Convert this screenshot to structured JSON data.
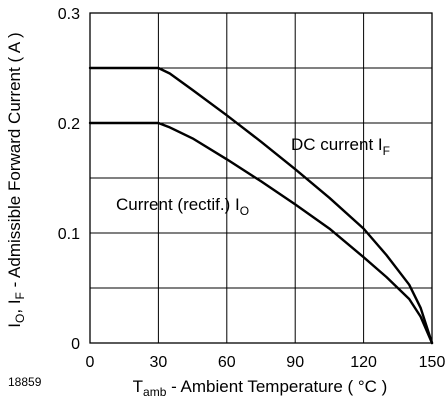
{
  "chart_data": {
    "type": "line",
    "figure_number": "18859",
    "xlabel": {
      "main": "T",
      "sub": "amb",
      "rest": " - Ambient Temperature ( °C )"
    },
    "ylabel": {
      "p1": "I",
      "s1": "O",
      "p2": ", I",
      "s2": "F",
      "p3": " - Admissible Forward Current ( A )"
    },
    "xlim": [
      0,
      150
    ],
    "ylim": [
      0,
      0.3
    ],
    "x_ticks": [
      0,
      30,
      60,
      90,
      120,
      150
    ],
    "x_tick_labels": [
      "0",
      "30",
      "60",
      "90",
      "120",
      "150"
    ],
    "y_ticks": [
      0,
      0.1,
      0.2,
      0.3
    ],
    "y_tick_labels": [
      "0",
      "0.1",
      "0.2",
      "0.3"
    ],
    "x_grid": [
      0,
      30,
      60,
      90,
      120,
      150
    ],
    "y_grid": [
      0,
      0.05,
      0.1,
      0.15,
      0.2,
      0.25,
      0.3
    ],
    "grid": true,
    "series": [
      {
        "name": "DC current I_F",
        "label_main": "DC current I",
        "label_sub": "F",
        "x": [
          0,
          30,
          35,
          45,
          60,
          75,
          90,
          105,
          120,
          130,
          140,
          145,
          150
        ],
        "y": [
          0.25,
          0.25,
          0.245,
          0.23,
          0.207,
          0.183,
          0.158,
          0.132,
          0.104,
          0.08,
          0.053,
          0.032,
          0.0
        ]
      },
      {
        "name": "Current (rectif.) I_O",
        "label_main": "Current (rectif.) I",
        "label_sub": "O",
        "x": [
          0,
          30,
          35,
          45,
          60,
          75,
          90,
          105,
          120,
          130,
          140,
          145,
          150
        ],
        "y": [
          0.2,
          0.2,
          0.196,
          0.186,
          0.167,
          0.147,
          0.126,
          0.104,
          0.078,
          0.06,
          0.04,
          0.024,
          0.0
        ]
      }
    ]
  }
}
